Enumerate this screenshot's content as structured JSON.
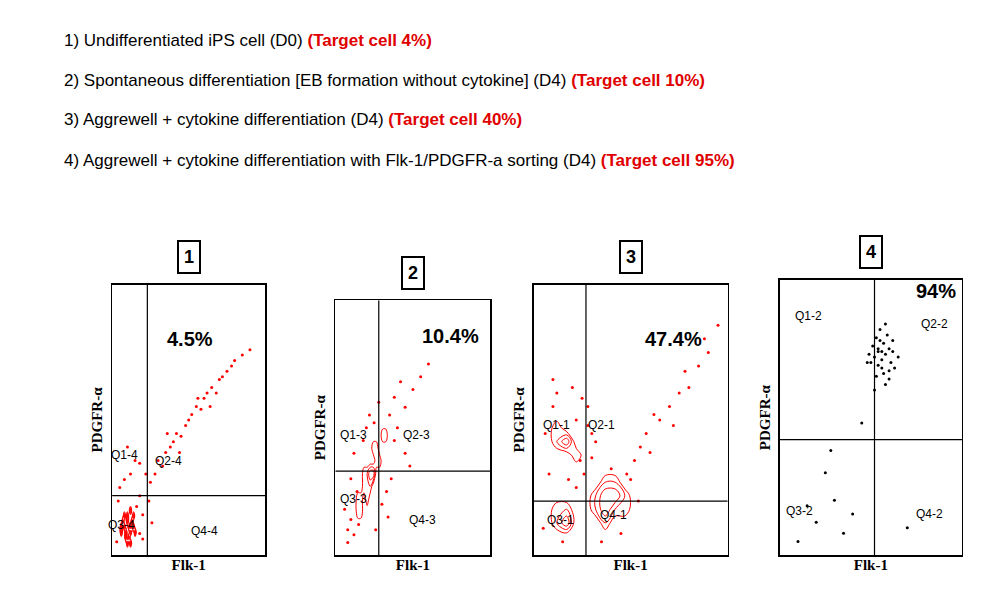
{
  "header": {
    "color": "#e00000",
    "lines": [
      {
        "text": "1) Undifferentiated iPS cell (D0)",
        "highlight": "(Target cell 4%)"
      },
      {
        "text": "2) Spontaneous differentiation [EB formation without cytokine] (D4)",
        "highlight": "(Target cell 10%)"
      },
      {
        "text": "3) Aggrewell + cytokine differentiation (D4)",
        "highlight": "(Target cell 40%)"
      },
      {
        "text": "4) Aggrewell + cytokine differentiation with Flk-1/PDGFR-a sorting (D4)",
        "highlight": "(Target cell 95%)"
      }
    ]
  },
  "chart_data": [
    {
      "type": "scatter",
      "title": "1",
      "x_label": "Flk-1",
      "y_label": "PDGFR-α",
      "xlim": [
        0,
        100
      ],
      "ylim": [
        0,
        100
      ],
      "tick_labels": false,
      "gate_x": 23,
      "gate_y": 22,
      "percent": {
        "text": "4.5%",
        "x": 51,
        "y": 80
      },
      "quadrants": [
        {
          "label": "Q1-4",
          "x": 8,
          "y": 37
        },
        {
          "label": "Q2-4",
          "x": 37,
          "y": 35
        },
        {
          "label": "Q3-4",
          "x": 6,
          "y": 11
        },
        {
          "label": "Q4-4",
          "x": 60,
          "y": 9
        }
      ],
      "series": [
        {
          "type": "contour",
          "color": "#ff0000",
          "x": [
            6,
            8,
            10,
            12,
            14,
            9,
            11,
            13,
            7,
            10,
            12,
            8,
            15,
            11,
            9,
            13,
            10,
            6,
            14,
            12
          ],
          "y": [
            8,
            10,
            12,
            9,
            11,
            6,
            7,
            13,
            12,
            15,
            5,
            14,
            8,
            10,
            9,
            11,
            4,
            11,
            14,
            16
          ]
        },
        {
          "type": "scatter",
          "marker": "dot",
          "color": "#ff0000",
          "x": [
            4,
            16,
            18,
            20,
            5,
            3,
            8,
            20,
            22,
            18,
            25,
            28,
            30,
            33,
            35,
            38,
            40,
            42,
            45,
            48,
            50,
            52,
            55,
            58,
            60,
            62,
            65,
            68,
            70,
            72,
            75,
            78,
            80,
            85,
            90,
            36,
            44,
            56,
            64,
            12,
            15,
            10,
            18,
            24,
            26
          ],
          "y": [
            20,
            18,
            22,
            6,
            25,
            5,
            28,
            15,
            30,
            34,
            27,
            30,
            35,
            33,
            38,
            40,
            42,
            45,
            44,
            48,
            50,
            52,
            55,
            54,
            58,
            60,
            62,
            60,
            65,
            66,
            68,
            70,
            72,
            74,
            76,
            45,
            38,
            58,
            55,
            30,
            35,
            40,
            8,
            20,
            12
          ]
        }
      ]
    },
    {
      "type": "scatter",
      "title": "2",
      "x_label": "Flk-1",
      "y_label": "PDGFR-α",
      "xlim": [
        0,
        100
      ],
      "ylim": [
        0,
        100
      ],
      "tick_labels": false,
      "gate_x": 28,
      "gate_y": 33,
      "percent": {
        "text": "10.4%",
        "x": 74,
        "y": 86
      },
      "quadrants": [
        {
          "label": "Q1-3",
          "x": 12,
          "y": 47
        },
        {
          "label": "Q2-3",
          "x": 52,
          "y": 47
        },
        {
          "label": "Q3-3",
          "x": 12,
          "y": 22
        },
        {
          "label": "Q4-3",
          "x": 56,
          "y": 14
        }
      ],
      "series": [
        {
          "type": "contour",
          "color": "#ff0000",
          "x": [
            15,
            18,
            20,
            22,
            24,
            26,
            19,
            23,
            21,
            25,
            17,
            28,
            30,
            16,
            22,
            27,
            20,
            24,
            14,
            32
          ],
          "y": [
            20,
            25,
            28,
            30,
            33,
            36,
            30,
            27,
            34,
            40,
            22,
            38,
            45,
            18,
            32,
            42,
            24,
            30,
            15,
            48
          ]
        },
        {
          "type": "scatter",
          "marker": "dot",
          "color": "#ff0000",
          "x": [
            8,
            10,
            12,
            14,
            35,
            38,
            40,
            42,
            45,
            10,
            12,
            30,
            33,
            36,
            18,
            20,
            22,
            45,
            50,
            55,
            60,
            8,
            6,
            28,
            25,
            38,
            48,
            15,
            26,
            34
          ],
          "y": [
            10,
            14,
            8,
            25,
            55,
            62,
            50,
            68,
            58,
            30,
            40,
            20,
            25,
            30,
            45,
            50,
            55,
            40,
            65,
            70,
            75,
            5,
            18,
            60,
            52,
            45,
            35,
            12,
            10,
            15
          ]
        }
      ]
    },
    {
      "type": "scatter",
      "title": "3",
      "x_label": "Flk-1",
      "y_label": "PDGFR-α",
      "xlim": [
        0,
        100
      ],
      "ylim": [
        0,
        100
      ],
      "tick_labels": false,
      "gate_x": 27,
      "gate_y": 20,
      "percent": {
        "text": "47.4%",
        "x": 72,
        "y": 80
      },
      "quadrants": [
        {
          "label": "Q1-1",
          "x": 12,
          "y": 48
        },
        {
          "label": "Q2-1",
          "x": 35,
          "y": 48
        },
        {
          "label": "Q3-1",
          "x": 14,
          "y": 13
        },
        {
          "label": "Q4-1",
          "x": 41,
          "y": 15
        }
      ],
      "series": [
        {
          "type": "contour",
          "color": "#ff0000",
          "x": [
            12,
            15,
            18,
            14,
            16,
            35,
            38,
            40,
            42,
            36,
            39,
            44,
            33,
            37,
            41,
            14,
            16,
            18,
            12,
            20,
            30,
            46,
            38,
            45
          ],
          "y": [
            12,
            15,
            14,
            18,
            10,
            18,
            20,
            22,
            17,
            24,
            15,
            20,
            21,
            26,
            25,
            40,
            44,
            42,
            46,
            38,
            16,
            18,
            12,
            24
          ]
        },
        {
          "type": "scatter",
          "marker": "dot",
          "color": "#ff0000",
          "x": [
            8,
            10,
            22,
            25,
            28,
            30,
            32,
            48,
            50,
            52,
            55,
            58,
            60,
            65,
            70,
            75,
            80,
            85,
            90,
            95,
            10,
            12,
            20,
            24,
            26,
            30,
            28,
            45,
            62,
            72,
            78,
            88,
            5,
            6,
            18,
            22,
            35,
            54,
            40,
            15
          ],
          "y": [
            30,
            55,
            50,
            58,
            48,
            36,
            42,
            30,
            28,
            35,
            40,
            45,
            38,
            50,
            55,
            60,
            62,
            70,
            75,
            85,
            65,
            60,
            62,
            35,
            30,
            45,
            55,
            8,
            52,
            48,
            68,
            80,
            10,
            45,
            28,
            25,
            5,
            20,
            32,
            5
          ]
        }
      ]
    },
    {
      "type": "scatter",
      "title": "4",
      "x_label": "Flk-1",
      "y_label": "PDGFR-α",
      "xlim": [
        0,
        100
      ],
      "ylim": [
        0,
        100
      ],
      "tick_labels": false,
      "gate_x": 52,
      "gate_y": 42,
      "percent": {
        "text": "94%",
        "x": 86,
        "y": 96
      },
      "quadrants": [
        {
          "label": "Q1-2",
          "x": 16,
          "y": 87
        },
        {
          "label": "Q2-2",
          "x": 85,
          "y": 84
        },
        {
          "label": "Q3-2",
          "x": 11,
          "y": 16
        },
        {
          "label": "Q4-2",
          "x": 82,
          "y": 15
        }
      ],
      "series": [
        {
          "type": "scatter",
          "marker": "dot",
          "color": "#000000",
          "x": [
            50,
            52,
            54,
            56,
            58,
            60,
            55,
            57,
            53,
            59,
            61,
            51,
            62,
            56,
            54,
            58,
            63,
            49,
            55,
            60,
            57,
            53,
            65,
            48,
            52,
            58,
            56,
            60,
            54,
            62,
            10,
            20,
            30,
            35,
            25,
            15,
            40,
            70,
            45,
            28
          ],
          "y": [
            70,
            72,
            74,
            68,
            73,
            75,
            78,
            66,
            65,
            80,
            70,
            76,
            74,
            71,
            69,
            62,
            68,
            73,
            82,
            64,
            77,
            79,
            72,
            70,
            60,
            84,
            74,
            67,
            75,
            78,
            5,
            12,
            20,
            8,
            30,
            18,
            15,
            10,
            48,
            38
          ]
        }
      ]
    }
  ]
}
